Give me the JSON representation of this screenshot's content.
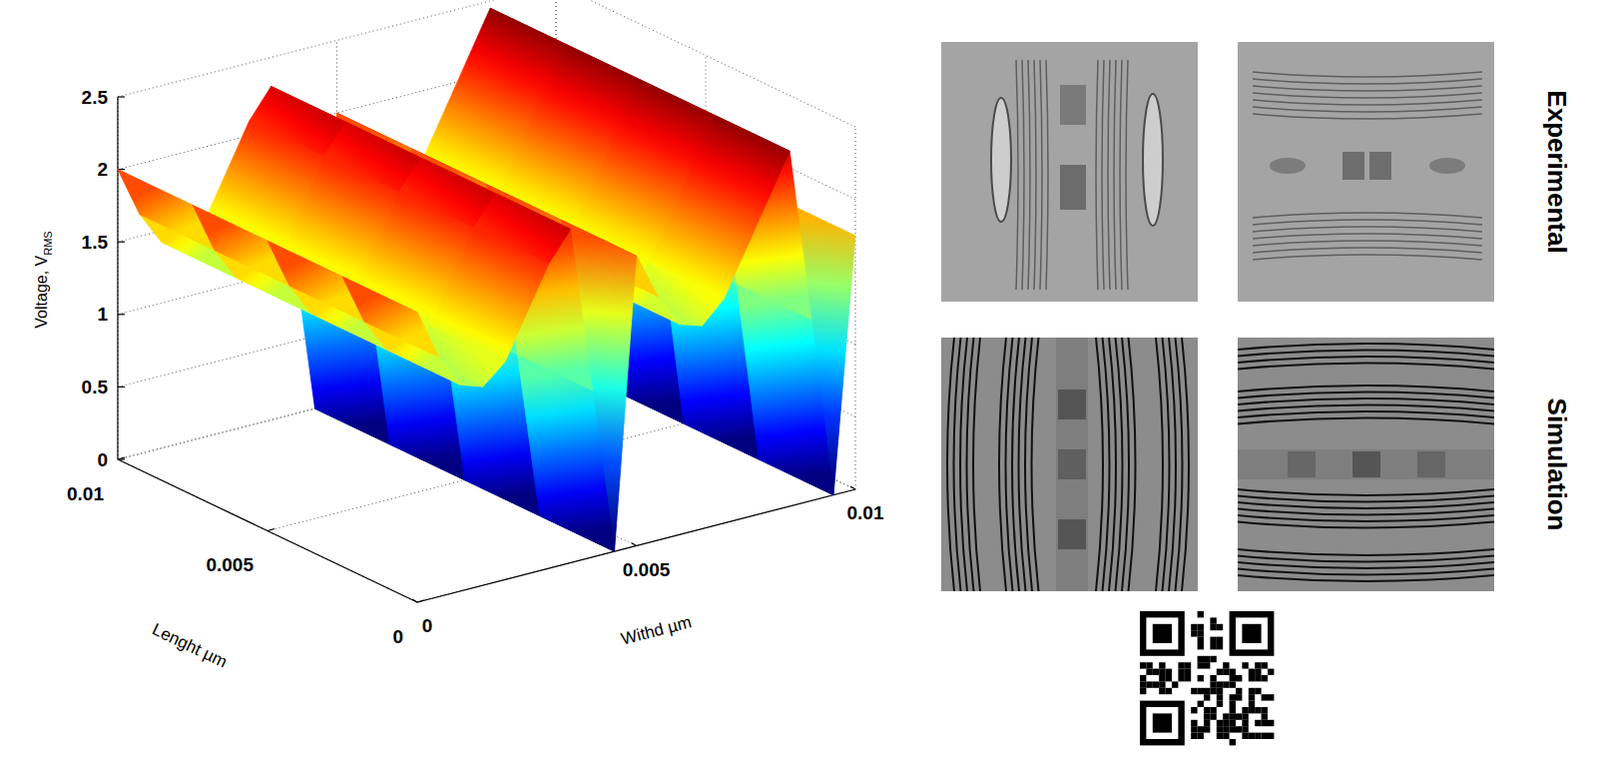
{
  "chart_data": {
    "type": "surface",
    "xlabel": "Withd µm",
    "ylabel": "Lenght µm",
    "zlabel": {
      "text": "Voltage, V",
      "subscript": "RMS"
    },
    "x": [
      0,
      0.0005,
      0.001,
      0.0015,
      0.002,
      0.0025,
      0.003,
      0.0035,
      0.004,
      0.0045,
      0.005,
      0.0055,
      0.006,
      0.0065,
      0.007,
      0.0075,
      0.008,
      0.0085,
      0.009,
      0.0095,
      0.01
    ],
    "y": [
      0,
      0.0025,
      0.005,
      0.0075,
      0.01
    ],
    "z": [
      [
        2.0,
        1.65,
        1.42,
        1.37,
        1.5,
        1.8,
        2.1,
        2.3,
        1.15,
        0.0,
        2.0,
        1.68,
        1.45,
        1.4,
        1.55,
        1.85,
        2.15,
        2.45,
        1.25,
        0.0,
        1.75
      ],
      [
        2.0,
        1.65,
        1.42,
        1.37,
        1.5,
        1.8,
        2.1,
        2.3,
        1.15,
        0.0,
        2.0,
        1.68,
        1.45,
        1.4,
        1.55,
        1.85,
        2.15,
        2.45,
        1.25,
        0.0,
        1.75
      ],
      [
        2.0,
        1.65,
        1.42,
        1.37,
        1.5,
        1.8,
        2.1,
        2.3,
        1.15,
        0.0,
        2.0,
        1.68,
        1.45,
        1.4,
        1.55,
        1.85,
        2.15,
        2.45,
        1.25,
        0.0,
        1.75
      ],
      [
        2.0,
        1.65,
        1.42,
        1.37,
        1.5,
        1.8,
        2.1,
        2.3,
        1.15,
        0.0,
        2.0,
        1.68,
        1.45,
        1.4,
        1.55,
        1.85,
        2.15,
        2.45,
        1.25,
        0.0,
        1.75
      ],
      [
        2.0,
        1.65,
        1.42,
        1.37,
        1.5,
        1.8,
        2.1,
        2.3,
        1.15,
        0.0,
        2.0,
        1.68,
        1.45,
        1.4,
        1.55,
        1.85,
        2.15,
        2.45,
        1.25,
        0.0,
        1.75
      ]
    ],
    "xlim": [
      0,
      0.01
    ],
    "ylim": [
      0,
      0.01
    ],
    "zlim": [
      0,
      2.5
    ],
    "xticks": [
      0,
      0.005,
      0.01
    ],
    "yticks": [
      0,
      0.005,
      0.01
    ],
    "zticks": [
      0,
      0.5,
      1,
      1.5,
      2,
      2.5
    ],
    "grid": true,
    "color": "jet"
  },
  "side_panel": {
    "row_labels": [
      "Experimental",
      "Simulation"
    ]
  }
}
